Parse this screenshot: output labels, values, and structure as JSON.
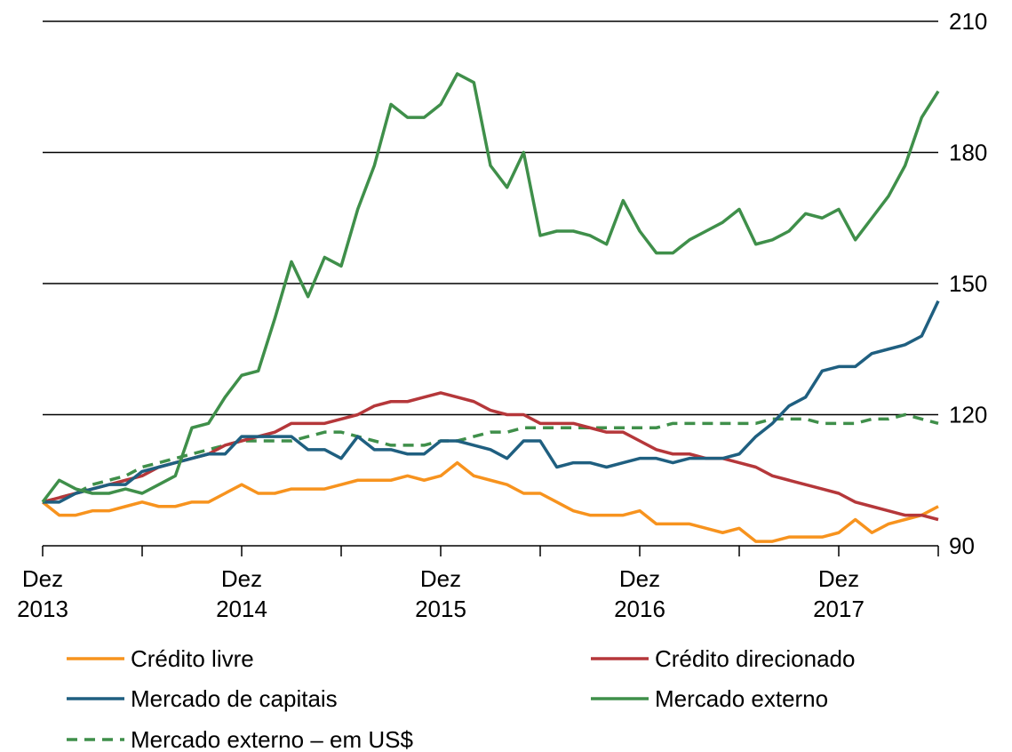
{
  "chart_data": {
    "type": "line",
    "categories": [
      "Dez 2013",
      null,
      null,
      null,
      null,
      null,
      null,
      null,
      null,
      null,
      null,
      null,
      "Dez 2014",
      null,
      null,
      null,
      null,
      null,
      null,
      null,
      null,
      null,
      null,
      null,
      "Dez 2015",
      null,
      null,
      null,
      null,
      null,
      null,
      null,
      null,
      null,
      null,
      null,
      "Dez 2016",
      null,
      null,
      null,
      null,
      null,
      null,
      null,
      null,
      null,
      null,
      null,
      "Dez 2017",
      null,
      null,
      null,
      null,
      null,
      null
    ],
    "ylim": [
      90,
      210
    ],
    "yticks": [
      90,
      120,
      150,
      180,
      210
    ],
    "grid": true,
    "series": [
      {
        "name": "Crédito livre",
        "color": "#f7931e",
        "dash": false,
        "values": [
          100,
          97,
          97,
          98,
          98,
          99,
          100,
          99,
          99,
          100,
          100,
          102,
          104,
          102,
          102,
          103,
          103,
          103,
          104,
          105,
          105,
          105,
          106,
          105,
          106,
          109,
          106,
          105,
          104,
          102,
          102,
          100,
          98,
          97,
          97,
          97,
          98,
          95,
          95,
          95,
          94,
          93,
          94,
          91,
          91,
          92,
          92,
          92,
          93,
          96,
          93,
          95,
          96,
          97,
          99
        ]
      },
      {
        "name": "Crédito direcionado",
        "color": "#b5373a",
        "dash": false,
        "values": [
          100,
          101,
          102,
          103,
          104,
          105,
          106,
          108,
          109,
          110,
          111,
          113,
          114,
          115,
          116,
          118,
          118,
          118,
          119,
          120,
          122,
          123,
          123,
          124,
          125,
          124,
          123,
          121,
          120,
          120,
          118,
          118,
          118,
          117,
          116,
          116,
          114,
          112,
          111,
          111,
          110,
          110,
          109,
          108,
          106,
          105,
          104,
          103,
          102,
          100,
          99,
          98,
          97,
          97,
          96
        ]
      },
      {
        "name": "Mercado de capitais",
        "color": "#1f5f80",
        "dash": false,
        "values": [
          100,
          100,
          102,
          103,
          104,
          104,
          107,
          108,
          109,
          110,
          111,
          111,
          115,
          115,
          115,
          115,
          112,
          112,
          110,
          115,
          112,
          112,
          111,
          111,
          114,
          114,
          113,
          112,
          110,
          114,
          114,
          108,
          109,
          109,
          108,
          109,
          110,
          110,
          109,
          110,
          110,
          110,
          111,
          115,
          118,
          122,
          124,
          130,
          131,
          131,
          134,
          135,
          136,
          138,
          146
        ]
      },
      {
        "name": "Mercado externo",
        "color": "#3f8f4a",
        "dash": false,
        "values": [
          100,
          105,
          103,
          102,
          102,
          103,
          102,
          104,
          106,
          117,
          118,
          124,
          129,
          130,
          142,
          155,
          147,
          156,
          154,
          167,
          177,
          191,
          188,
          188,
          191,
          198,
          196,
          177,
          172,
          180,
          161,
          162,
          162,
          161,
          159,
          169,
          162,
          157,
          157,
          160,
          162,
          164,
          167,
          159,
          160,
          162,
          166,
          165,
          167,
          160,
          165,
          170,
          177,
          188,
          194
        ]
      },
      {
        "name": "Mercado externo – em US$",
        "color": "#3f8f4a",
        "dash": true,
        "values": [
          100,
          101,
          102,
          104,
          105,
          106,
          108,
          109,
          110,
          111,
          112,
          113,
          114,
          114,
          114,
          114,
          115,
          116,
          116,
          115,
          114,
          113,
          113,
          113,
          114,
          114,
          115,
          116,
          116,
          117,
          117,
          117,
          117,
          117,
          117,
          117,
          117,
          117,
          118,
          118,
          118,
          118,
          118,
          118,
          119,
          119,
          119,
          118,
          118,
          118,
          119,
          119,
          120,
          119,
          118
        ]
      }
    ]
  }
}
